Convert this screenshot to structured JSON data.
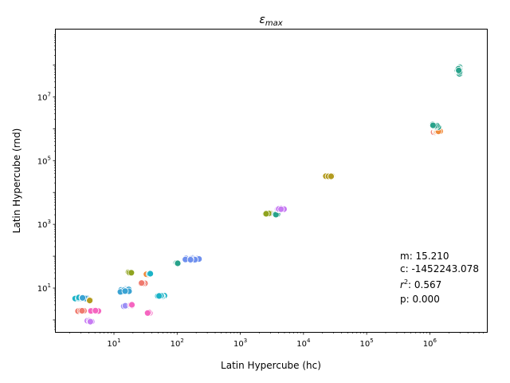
{
  "chart_data": {
    "type": "scatter",
    "title_base": "ε",
    "title_sub": "max",
    "xlabel": "Latin Hypercube (hc)",
    "ylabel": "Latin Hypercube (rnd)",
    "x_scale": "log",
    "y_scale": "log",
    "xlim": [
      1.2,
      8000000
    ],
    "ylim": [
      0.42,
      1300000000
    ],
    "grid": false,
    "x_ticks": [
      {
        "value": 10,
        "base": "10",
        "exp": "1"
      },
      {
        "value": 100,
        "base": "10",
        "exp": "2"
      },
      {
        "value": 1000,
        "base": "10",
        "exp": "3"
      },
      {
        "value": 10000,
        "base": "10",
        "exp": "4"
      },
      {
        "value": 100000,
        "base": "10",
        "exp": "5"
      },
      {
        "value": 1000000,
        "base": "10",
        "exp": "6"
      }
    ],
    "y_ticks": [
      {
        "value": 10,
        "base": "10",
        "exp": "1"
      },
      {
        "value": 1000,
        "base": "10",
        "exp": "3"
      },
      {
        "value": 100000,
        "base": "10",
        "exp": "5"
      },
      {
        "value": 10000000,
        "base": "10",
        "exp": "7"
      }
    ],
    "annotation": {
      "m_text": "m: 15.210",
      "c_text": "c: -1452243.078",
      "r2_label": "r",
      "r2_exp": "2",
      "r2_value": ": 0.567",
      "p_text": "p: 0.000"
    },
    "clusters": [
      {
        "color": "#1bb3c7",
        "x": 2.8,
        "y": 4.8,
        "sx": 0.13,
        "sy": 0.03,
        "n": 14
      },
      {
        "color": "#3ba3d3",
        "x": 3.3,
        "y": 4.9,
        "sx": 0.08,
        "sy": 0.03,
        "n": 8
      },
      {
        "color": "#b39b1f",
        "x": 4.0,
        "y": 4.2,
        "sx": 0.04,
        "sy": 0.02,
        "n": 4
      },
      {
        "color": "#ef7a6e",
        "x": 3.0,
        "y": 1.95,
        "sx": 0.07,
        "sy": 0.02,
        "n": 8
      },
      {
        "color": "#f565c0",
        "x": 5.0,
        "y": 1.95,
        "sx": 0.12,
        "sy": 0.02,
        "n": 12
      },
      {
        "color": "#c77bf3",
        "x": 4.2,
        "y": 0.9,
        "sx": 0.06,
        "sy": 0.03,
        "n": 8
      },
      {
        "color": "#3ba3d3",
        "x": 14.5,
        "y": 8.5,
        "sx": 0.12,
        "sy": 0.09,
        "n": 22
      },
      {
        "color": "#9b8ff5",
        "x": 16.0,
        "y": 2.75,
        "sx": 0.07,
        "sy": 0.02,
        "n": 8
      },
      {
        "color": "#f565c0",
        "x": 19.0,
        "y": 2.9,
        "sx": 0.05,
        "sy": 0.02,
        "n": 5
      },
      {
        "color": "#8fa31f",
        "x": 18.0,
        "y": 30.0,
        "sx": 0.06,
        "sy": 0.04,
        "n": 8
      },
      {
        "color": "#ef7a6e",
        "x": 28.0,
        "y": 14.0,
        "sx": 0.05,
        "sy": 0.02,
        "n": 6
      },
      {
        "color": "#f08a3a",
        "x": 34.0,
        "y": 27.0,
        "sx": 0.05,
        "sy": 0.03,
        "n": 6
      },
      {
        "color": "#1bb3c7",
        "x": 38.0,
        "y": 28.5,
        "sx": 0.04,
        "sy": 0.03,
        "n": 5
      },
      {
        "color": "#f565c0",
        "x": 35.0,
        "y": 1.7,
        "sx": 0.05,
        "sy": 0.02,
        "n": 6
      },
      {
        "color": "#1bb3c7",
        "x": 55.0,
        "y": 5.6,
        "sx": 0.1,
        "sy": 0.02,
        "n": 10
      },
      {
        "color": "#27a28a",
        "x": 100.0,
        "y": 60.0,
        "sx": 0.04,
        "sy": 0.03,
        "n": 4
      },
      {
        "color": "#6f90ee",
        "x": 175.0,
        "y": 80.0,
        "sx": 0.22,
        "sy": 0.07,
        "n": 28
      },
      {
        "color": "#8fa31f",
        "x": 2800.0,
        "y": 2150.0,
        "sx": 0.07,
        "sy": 0.02,
        "n": 10
      },
      {
        "color": "#27a28a",
        "x": 3600.0,
        "y": 2050.0,
        "sx": 0.05,
        "sy": 0.02,
        "n": 5
      },
      {
        "color": "#c77bf3",
        "x": 4300.0,
        "y": 3000.0,
        "sx": 0.07,
        "sy": 0.03,
        "n": 12
      },
      {
        "color": "#b39b1f",
        "x": 25000.0,
        "y": 32000.0,
        "sx": 0.08,
        "sy": 0.03,
        "n": 14
      },
      {
        "color": "#ef7a6e",
        "x": 1250000.0,
        "y": 780000.0,
        "sx": 0.05,
        "sy": 0.03,
        "n": 12
      },
      {
        "color": "#f08a3a",
        "x": 1350000.0,
        "y": 850000.0,
        "sx": 0.04,
        "sy": 0.03,
        "n": 8
      },
      {
        "color": "#27a28a",
        "x": 1200000.0,
        "y": 1250000.0,
        "sx": 0.08,
        "sy": 0.07,
        "n": 40
      },
      {
        "color": "#27a28a",
        "x": 2900000.0,
        "y": 65000000.0,
        "sx": 0.03,
        "sy": 0.18,
        "n": 30
      }
    ]
  }
}
